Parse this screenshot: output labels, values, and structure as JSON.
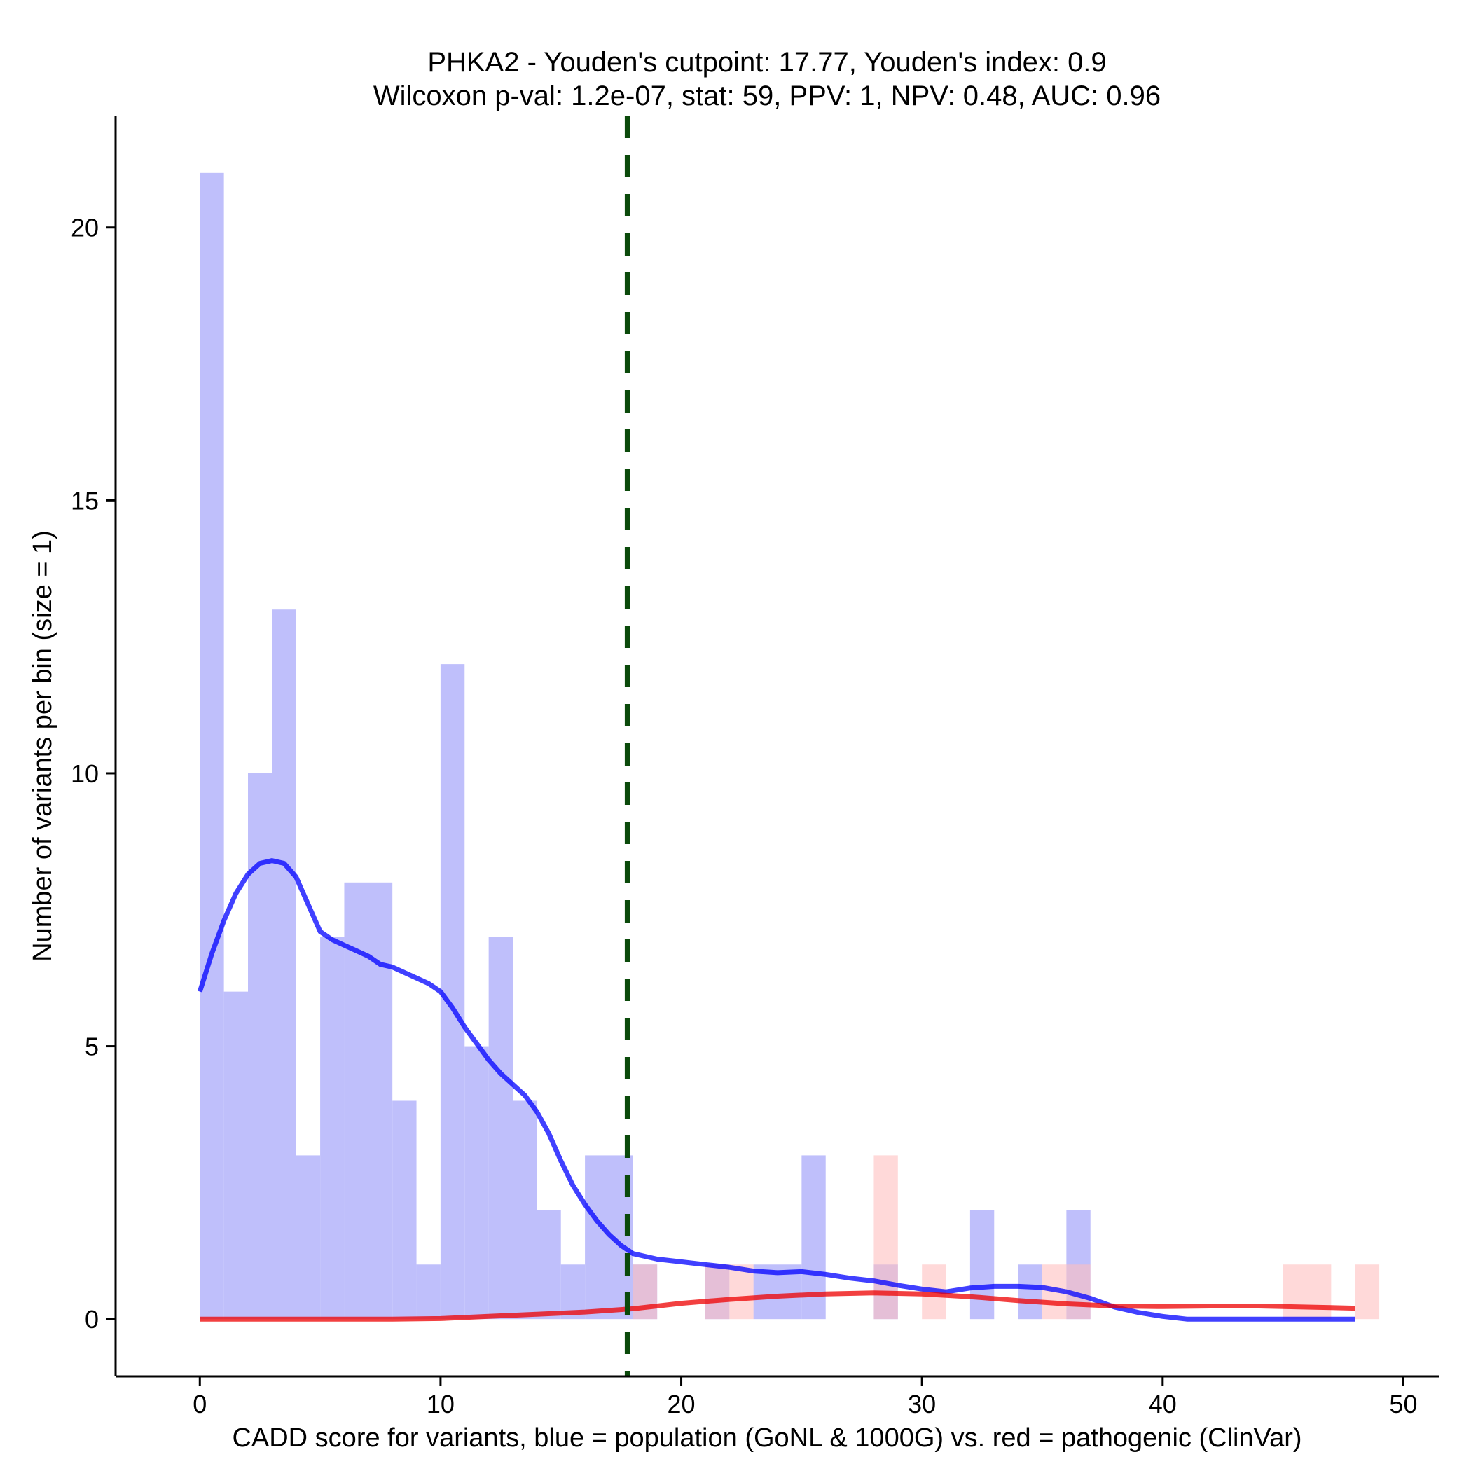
{
  "chart_data": {
    "type": "histogram",
    "title": "PHKA2 - Youden's cutpoint: 17.77, Youden's index: 0.9",
    "subtitle": "Wilcoxon p-val: 1.2e-07, stat: 59, PPV: 1, NPV: 0.48, AUC: 0.96",
    "xlabel": "CADD score for variants, blue = population (GoNL & 1000G) vs. red = pathogenic (ClinVar)",
    "ylabel": "Number of variants per bin (size = 1)",
    "xlim": [
      -3.5,
      51.5
    ],
    "ylim": [
      -1.05,
      22.05
    ],
    "x_ticks": [
      0,
      10,
      20,
      30,
      40,
      50
    ],
    "y_ticks": [
      0,
      5,
      10,
      15,
      20
    ],
    "bin_width": 1,
    "cutpoint": 17.77,
    "series": [
      {
        "name": "population (GoNL & 1000G)",
        "color": "#0000ff",
        "bar_fill": "#bfbffb",
        "bins": [
          {
            "start": 0,
            "count": 21
          },
          {
            "start": 1,
            "count": 6
          },
          {
            "start": 2,
            "count": 10
          },
          {
            "start": 3,
            "count": 13
          },
          {
            "start": 4,
            "count": 3
          },
          {
            "start": 5,
            "count": 7
          },
          {
            "start": 6,
            "count": 8
          },
          {
            "start": 7,
            "count": 8
          },
          {
            "start": 8,
            "count": 4
          },
          {
            "start": 9,
            "count": 1
          },
          {
            "start": 10,
            "count": 12
          },
          {
            "start": 11,
            "count": 5
          },
          {
            "start": 12,
            "count": 7
          },
          {
            "start": 13,
            "count": 4
          },
          {
            "start": 14,
            "count": 2
          },
          {
            "start": 15,
            "count": 1
          },
          {
            "start": 16,
            "count": 3
          },
          {
            "start": 17,
            "count": 3
          },
          {
            "start": 18,
            "count": 1
          },
          {
            "start": 21,
            "count": 1
          },
          {
            "start": 23,
            "count": 1
          },
          {
            "start": 24,
            "count": 1
          },
          {
            "start": 25,
            "count": 3
          },
          {
            "start": 28,
            "count": 1
          },
          {
            "start": 32,
            "count": 2
          },
          {
            "start": 34,
            "count": 1
          },
          {
            "start": 36,
            "count": 2
          }
        ],
        "density_curve": [
          [
            0,
            6.0
          ],
          [
            0.5,
            6.7
          ],
          [
            1,
            7.3
          ],
          [
            1.5,
            7.8
          ],
          [
            2,
            8.15
          ],
          [
            2.5,
            8.35
          ],
          [
            3,
            8.4
          ],
          [
            3.5,
            8.35
          ],
          [
            4,
            8.1
          ],
          [
            4.5,
            7.6
          ],
          [
            5,
            7.1
          ],
          [
            5.5,
            6.95
          ],
          [
            6,
            6.85
          ],
          [
            6.5,
            6.75
          ],
          [
            7,
            6.65
          ],
          [
            7.5,
            6.5
          ],
          [
            8,
            6.45
          ],
          [
            8.5,
            6.35
          ],
          [
            9,
            6.25
          ],
          [
            9.5,
            6.15
          ],
          [
            10,
            6.0
          ],
          [
            10.5,
            5.7
          ],
          [
            11,
            5.35
          ],
          [
            11.5,
            5.05
          ],
          [
            12,
            4.75
          ],
          [
            12.5,
            4.5
          ],
          [
            13,
            4.3
          ],
          [
            13.5,
            4.1
          ],
          [
            14,
            3.8
          ],
          [
            14.5,
            3.4
          ],
          [
            15,
            2.9
          ],
          [
            15.5,
            2.45
          ],
          [
            16,
            2.1
          ],
          [
            16.5,
            1.8
          ],
          [
            17,
            1.55
          ],
          [
            17.5,
            1.35
          ],
          [
            18,
            1.2
          ],
          [
            19,
            1.1
          ],
          [
            20,
            1.05
          ],
          [
            21,
            1.0
          ],
          [
            22,
            0.95
          ],
          [
            23,
            0.88
          ],
          [
            24,
            0.85
          ],
          [
            25,
            0.87
          ],
          [
            26,
            0.82
          ],
          [
            27,
            0.75
          ],
          [
            28,
            0.7
          ],
          [
            29,
            0.62
          ],
          [
            30,
            0.55
          ],
          [
            31,
            0.5
          ],
          [
            32,
            0.57
          ],
          [
            33,
            0.6
          ],
          [
            34,
            0.6
          ],
          [
            35,
            0.58
          ],
          [
            36,
            0.5
          ],
          [
            37,
            0.38
          ],
          [
            38,
            0.22
          ],
          [
            39,
            0.12
          ],
          [
            40,
            0.05
          ],
          [
            41,
            0.0
          ],
          [
            42,
            0.0
          ],
          [
            44,
            0.0
          ],
          [
            46,
            0.0
          ],
          [
            48,
            0.0
          ]
        ]
      },
      {
        "name": "pathogenic (ClinVar)",
        "color": "#ee0000",
        "bar_fill": "#ffbfbf",
        "bins": [
          {
            "start": 18,
            "count": 1
          },
          {
            "start": 21,
            "count": 1
          },
          {
            "start": 22,
            "count": 1
          },
          {
            "start": 28,
            "count": 3
          },
          {
            "start": 30,
            "count": 1
          },
          {
            "start": 35,
            "count": 1
          },
          {
            "start": 36,
            "count": 1
          },
          {
            "start": 45,
            "count": 1
          },
          {
            "start": 46,
            "count": 1
          },
          {
            "start": 48,
            "count": 1
          }
        ],
        "density_curve": [
          [
            0,
            0.0
          ],
          [
            4,
            0.0
          ],
          [
            8,
            0.0
          ],
          [
            10,
            0.01
          ],
          [
            12,
            0.05
          ],
          [
            14,
            0.09
          ],
          [
            16,
            0.13
          ],
          [
            18,
            0.19
          ],
          [
            20,
            0.29
          ],
          [
            22,
            0.36
          ],
          [
            24,
            0.42
          ],
          [
            26,
            0.46
          ],
          [
            28,
            0.48
          ],
          [
            30,
            0.46
          ],
          [
            32,
            0.41
          ],
          [
            34,
            0.34
          ],
          [
            36,
            0.28
          ],
          [
            38,
            0.24
          ],
          [
            40,
            0.23
          ],
          [
            42,
            0.24
          ],
          [
            44,
            0.24
          ],
          [
            46,
            0.22
          ],
          [
            48,
            0.2
          ]
        ]
      }
    ]
  }
}
